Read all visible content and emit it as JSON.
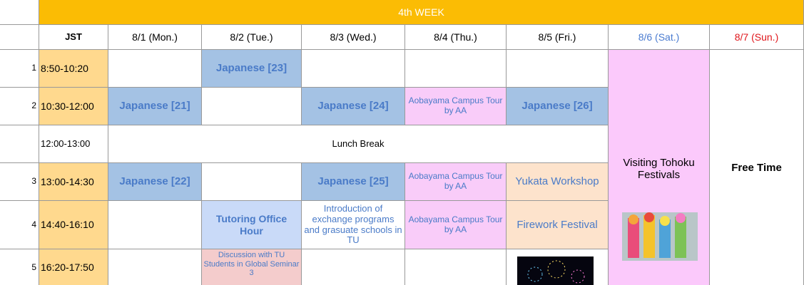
{
  "week": "4th WEEK",
  "columns": [
    "JST",
    "8/1 (Mon.)",
    "8/2 (Tue.)",
    "8/3 (Wed.)",
    "8/4 (Thu.)",
    "8/5 (Fri.)",
    "8/6 (Sat.)",
    "8/7 (Sun.)"
  ],
  "periods": [
    "1",
    "2",
    "3",
    "4",
    "5"
  ],
  "times": [
    "8:50-10:20",
    "10:30-12:00",
    "12:00-13:00",
    "13:00-14:30",
    "14:40-16:10",
    "16:20-17:50"
  ],
  "sessions": [
    "Japanese [23]",
    "Japanese [21]",
    "Japanese [24]",
    "Aobayama Campus Tour by AA",
    "Japanese [26]",
    "Lunch Break",
    "Japanese [22]",
    "Japanese [25]",
    "Aobayama Campus Tour by AA",
    "Yukata Workshop",
    "Tutoring Office Hour",
    "Introduction of exchange programs and grasuate schools in TU",
    "Aobayama Campus Tour by AA",
    "Firework Festival",
    "Discussion with TU Students in Global Seminar 3",
    "Visiting Tohoku Festivals",
    "Free Time"
  ]
}
